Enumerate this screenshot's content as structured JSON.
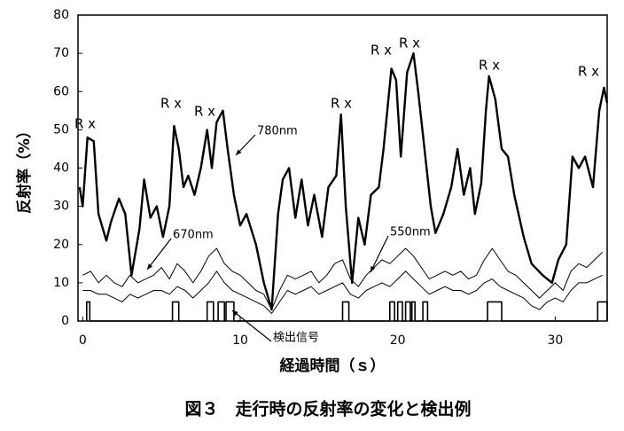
{
  "chart_data": {
    "type": "line",
    "xlabel": "経過時間（ｓ）",
    "ylabel": "反射率（%）",
    "caption": "図３　走行時の反射率の変化と検出例",
    "xlim": [
      -0.3,
      33.3
    ],
    "xticks": [
      0,
      10,
      20,
      30
    ],
    "ylim": [
      0,
      80
    ],
    "yticks": [
      0,
      10,
      20,
      30,
      40,
      50,
      60,
      70,
      80
    ],
    "grid": false,
    "annotations": [
      "R x",
      "R x",
      "R x",
      "R x",
      "R x",
      "R x",
      "R x",
      "R x"
    ],
    "series": [
      {
        "name": "780nm",
        "color": "#000000",
        "x": [
          -0.2,
          0,
          0.3,
          0.7,
          1.0,
          1.5,
          1.8,
          2.3,
          2.7,
          3.1,
          3.6,
          3.9,
          4.3,
          4.7,
          5.1,
          5.5,
          5.8,
          6.1,
          6.4,
          6.7,
          7.1,
          7.5,
          7.9,
          8.2,
          8.5,
          8.9,
          9.2,
          9.6,
          10,
          10.4,
          11,
          11.5,
          12,
          12.4,
          12.7,
          13.1,
          13.5,
          13.9,
          14.3,
          14.7,
          15.2,
          15.6,
          16.1,
          16.4,
          16.7,
          17.1,
          17.5,
          17.9,
          18.3,
          18.8,
          19.1,
          19.6,
          19.9,
          20.2,
          20.6,
          21,
          21.3,
          21.7,
          22.1,
          22.4,
          22.9,
          23.4,
          23.8,
          24.2,
          24.6,
          24.9,
          25.3,
          25.6,
          25.8,
          26.2,
          26.6,
          27,
          27.4,
          28,
          28.5,
          29.2,
          29.8,
          30.2,
          30.7,
          31.1,
          31.5,
          31.9,
          32.4,
          32.8,
          33.1,
          33.3
        ],
        "values": [
          35,
          30,
          48,
          47,
          28,
          21,
          26,
          32,
          28,
          12,
          24,
          37,
          27,
          30,
          22,
          30,
          51,
          45,
          35,
          38,
          33,
          40,
          50,
          40,
          52,
          55,
          45,
          33,
          25,
          28,
          20,
          10,
          3,
          28,
          37,
          40,
          27,
          37,
          25,
          33,
          22,
          35,
          38,
          54,
          30,
          10,
          27,
          20,
          33,
          35,
          45,
          66,
          63,
          43,
          65,
          70,
          60,
          45,
          30,
          23,
          28,
          35,
          45,
          33,
          40,
          28,
          36,
          55,
          64,
          58,
          45,
          43,
          33,
          22,
          15,
          12,
          10,
          16,
          20,
          43,
          40,
          43,
          35,
          55,
          61,
          57
        ]
      },
      {
        "name": "670nm",
        "color": "#000000",
        "x": [
          0,
          0.5,
          1,
          1.5,
          2,
          2.5,
          3,
          3.5,
          4,
          4.5,
          5,
          5.5,
          6,
          6.5,
          7,
          7.5,
          8,
          8.5,
          9,
          9.5,
          10,
          10.5,
          11,
          11.5,
          12,
          12.5,
          13,
          13.5,
          14,
          14.5,
          15,
          15.5,
          16,
          16.5,
          17,
          17.5,
          18,
          18.5,
          19,
          19.5,
          20,
          20.5,
          21,
          21.5,
          22,
          22.5,
          23,
          23.5,
          24,
          24.5,
          25,
          25.5,
          26,
          26.5,
          27,
          27.5,
          28,
          28.5,
          29,
          29.5,
          30,
          30.5,
          31,
          31.5,
          32,
          32.5,
          33
        ],
        "values": [
          12,
          13,
          10,
          12,
          10,
          9,
          12,
          10,
          11,
          12,
          14,
          11,
          15,
          13,
          10,
          13,
          17,
          19,
          15,
          13,
          12,
          10,
          8,
          7,
          3,
          8,
          12,
          11,
          12,
          13,
          10,
          12,
          15,
          16,
          11,
          9,
          12,
          14,
          16,
          15,
          17,
          19,
          17,
          14,
          11,
          12,
          13,
          12,
          13,
          11,
          12,
          16,
          19,
          16,
          13,
          12,
          10,
          8,
          6,
          8,
          10,
          8,
          13,
          15,
          14,
          16,
          18
        ]
      },
      {
        "name": "550nm",
        "color": "#000000",
        "x": [
          0,
          0.5,
          1,
          1.5,
          2,
          2.5,
          3,
          3.5,
          4,
          4.5,
          5,
          5.5,
          6,
          6.5,
          7,
          7.5,
          8,
          8.5,
          9,
          9.5,
          10,
          10.5,
          11,
          11.5,
          12,
          12.5,
          13,
          13.5,
          14,
          14.5,
          15,
          15.5,
          16,
          16.5,
          17,
          17.5,
          18,
          18.5,
          19,
          19.5,
          20,
          20.5,
          21,
          21.5,
          22,
          22.5,
          23,
          23.5,
          24,
          24.5,
          25,
          25.5,
          26,
          26.5,
          27,
          27.5,
          28,
          28.5,
          29,
          29.5,
          30,
          30.5,
          31,
          31.5,
          32,
          32.5,
          33
        ],
        "values": [
          8,
          8,
          7,
          7,
          6,
          5,
          7,
          6,
          7,
          8,
          8,
          7,
          9,
          8,
          6,
          8,
          10,
          13,
          10,
          8,
          7,
          6,
          5,
          4,
          2,
          5,
          8,
          7,
          8,
          9,
          7,
          8,
          9,
          10,
          7,
          6,
          8,
          9,
          10,
          9,
          11,
          13,
          11,
          9,
          7,
          8,
          9,
          8,
          8,
          7,
          8,
          10,
          11,
          9,
          8,
          7,
          6,
          4,
          3,
          5,
          6,
          5,
          8,
          10,
          10,
          11,
          12
        ]
      },
      {
        "name": "検出信号",
        "color": "#000000",
        "x": [
          0.25,
          0.25,
          0.45,
          0.45,
          5.7,
          5.7,
          6.1,
          6.1,
          7.9,
          7.9,
          8.3,
          8.3,
          8.6,
          8.6,
          9.0,
          9.0,
          9.1,
          9.1,
          9.6,
          9.6,
          16.5,
          16.5,
          16.9,
          16.9,
          19.5,
          19.5,
          19.8,
          19.8,
          20.0,
          20.0,
          20.3,
          20.3,
          20.5,
          20.5,
          20.8,
          20.8,
          20.9,
          20.9,
          21.1,
          21.1,
          21.6,
          21.6,
          21.9,
          21.9,
          25.7,
          25.7,
          26.6,
          26.6,
          32.7,
          32.7,
          33.3,
          33.3
        ],
        "values": [
          0,
          5,
          5,
          0,
          0,
          5,
          5,
          0,
          0,
          5,
          5,
          0,
          0,
          5,
          5,
          0,
          0,
          5,
          5,
          0,
          0,
          5,
          5,
          0,
          0,
          5,
          5,
          0,
          0,
          5,
          5,
          0,
          0,
          5,
          5,
          0,
          0,
          5,
          5,
          0,
          0,
          5,
          5,
          0,
          0,
          5,
          5,
          0,
          0,
          5,
          5,
          0
        ]
      }
    ]
  }
}
